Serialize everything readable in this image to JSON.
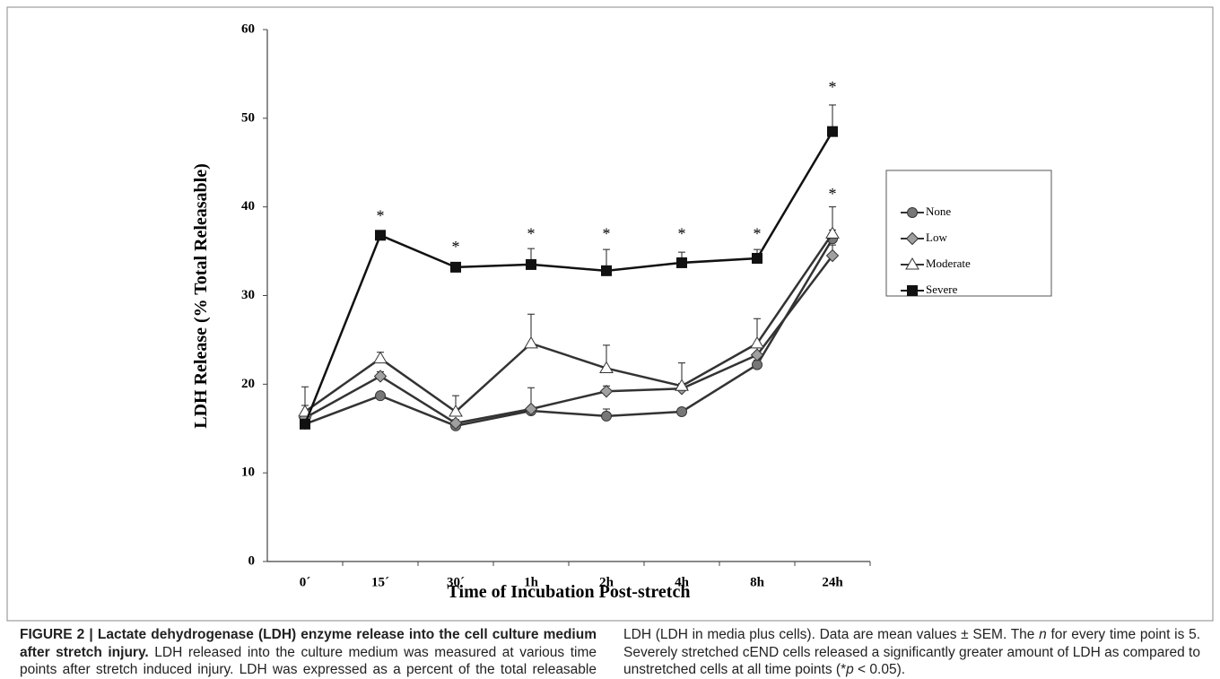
{
  "chart_data": {
    "type": "line",
    "y_label": "LDH Release (% Total Releasable)",
    "x_label": "Time of Incubation Post-stretch",
    "categories": [
      "0´",
      "15´",
      "30´",
      "1h",
      "2h",
      "4h",
      "8h",
      "24h"
    ],
    "ylim": [
      0,
      60
    ],
    "yticks": [
      0,
      10,
      20,
      30,
      40,
      50,
      60
    ],
    "series": [
      {
        "name": "None",
        "color": "#333333",
        "marker": "circle",
        "marker_fill": "#777777",
        "values": [
          15.5,
          18.7,
          15.3,
          17.0,
          16.4,
          16.9,
          22.2,
          36.4
        ],
        "errors": [
          0.6,
          0.4,
          0.4,
          0.5,
          0.8,
          0.4,
          0.5,
          1.0
        ]
      },
      {
        "name": "Low",
        "color": "#333333",
        "marker": "diamond",
        "marker_fill": "#a0a0a0",
        "values": [
          16.2,
          20.9,
          15.6,
          17.2,
          19.2,
          19.5,
          23.3,
          34.5
        ],
        "errors": [
          1.4,
          0.5,
          0.4,
          2.4,
          0.6,
          0.6,
          0.8,
          1.2
        ]
      },
      {
        "name": "Moderate",
        "color": "#333333",
        "marker": "triangle",
        "marker_fill": "#ffffff",
        "values": [
          16.9,
          22.9,
          16.9,
          24.6,
          21.8,
          19.8,
          24.6,
          37.0
        ],
        "errors": [
          2.8,
          0.7,
          1.8,
          3.3,
          2.6,
          2.6,
          2.8,
          3.0
        ]
      },
      {
        "name": "Severe",
        "color": "#111111",
        "marker": "square",
        "marker_fill": "#111111",
        "values": [
          15.5,
          36.8,
          33.2,
          33.5,
          32.8,
          33.7,
          34.2,
          48.5
        ],
        "errors": [
          0.3,
          0.3,
          0.5,
          1.8,
          2.4,
          1.2,
          1.0,
          3.0
        ]
      }
    ],
    "annotations": [
      {
        "text": "*",
        "category": 1,
        "y": 39.0
      },
      {
        "text": "*",
        "category": 2,
        "y": 35.5
      },
      {
        "text": "*",
        "category": 3,
        "y": 37.0
      },
      {
        "text": "*",
        "category": 4,
        "y": 37.0
      },
      {
        "text": "*",
        "category": 5,
        "y": 37.0
      },
      {
        "text": "*",
        "category": 6,
        "y": 37.0
      },
      {
        "text": "*",
        "category": 7,
        "y": 53.5
      },
      {
        "text": "*",
        "category": 7,
        "y": 41.5
      }
    ],
    "legend": "right"
  },
  "caption": [
    {
      "text": "FIGURE 2 | Lactate dehydrogenase (LDH) enzyme release into the cell culture medium after stretch injury.",
      "bold": true
    },
    {
      "text": " LDH released into the culture medium was measured at various time points after stretch induced injury. LDH was expressed as a percent of the total releasable LDH (LDH in media plus cells). Data are mean values ± SEM. The "
    },
    {
      "text": "n",
      "italic": true
    },
    {
      "text": " for every time point is 5. Severely stretched cEND cells released a significantly greater amount of LDH as compared to unstretched cells at all time points (*"
    },
    {
      "text": "p",
      "italic": true
    },
    {
      "text": " < 0.05)."
    }
  ]
}
